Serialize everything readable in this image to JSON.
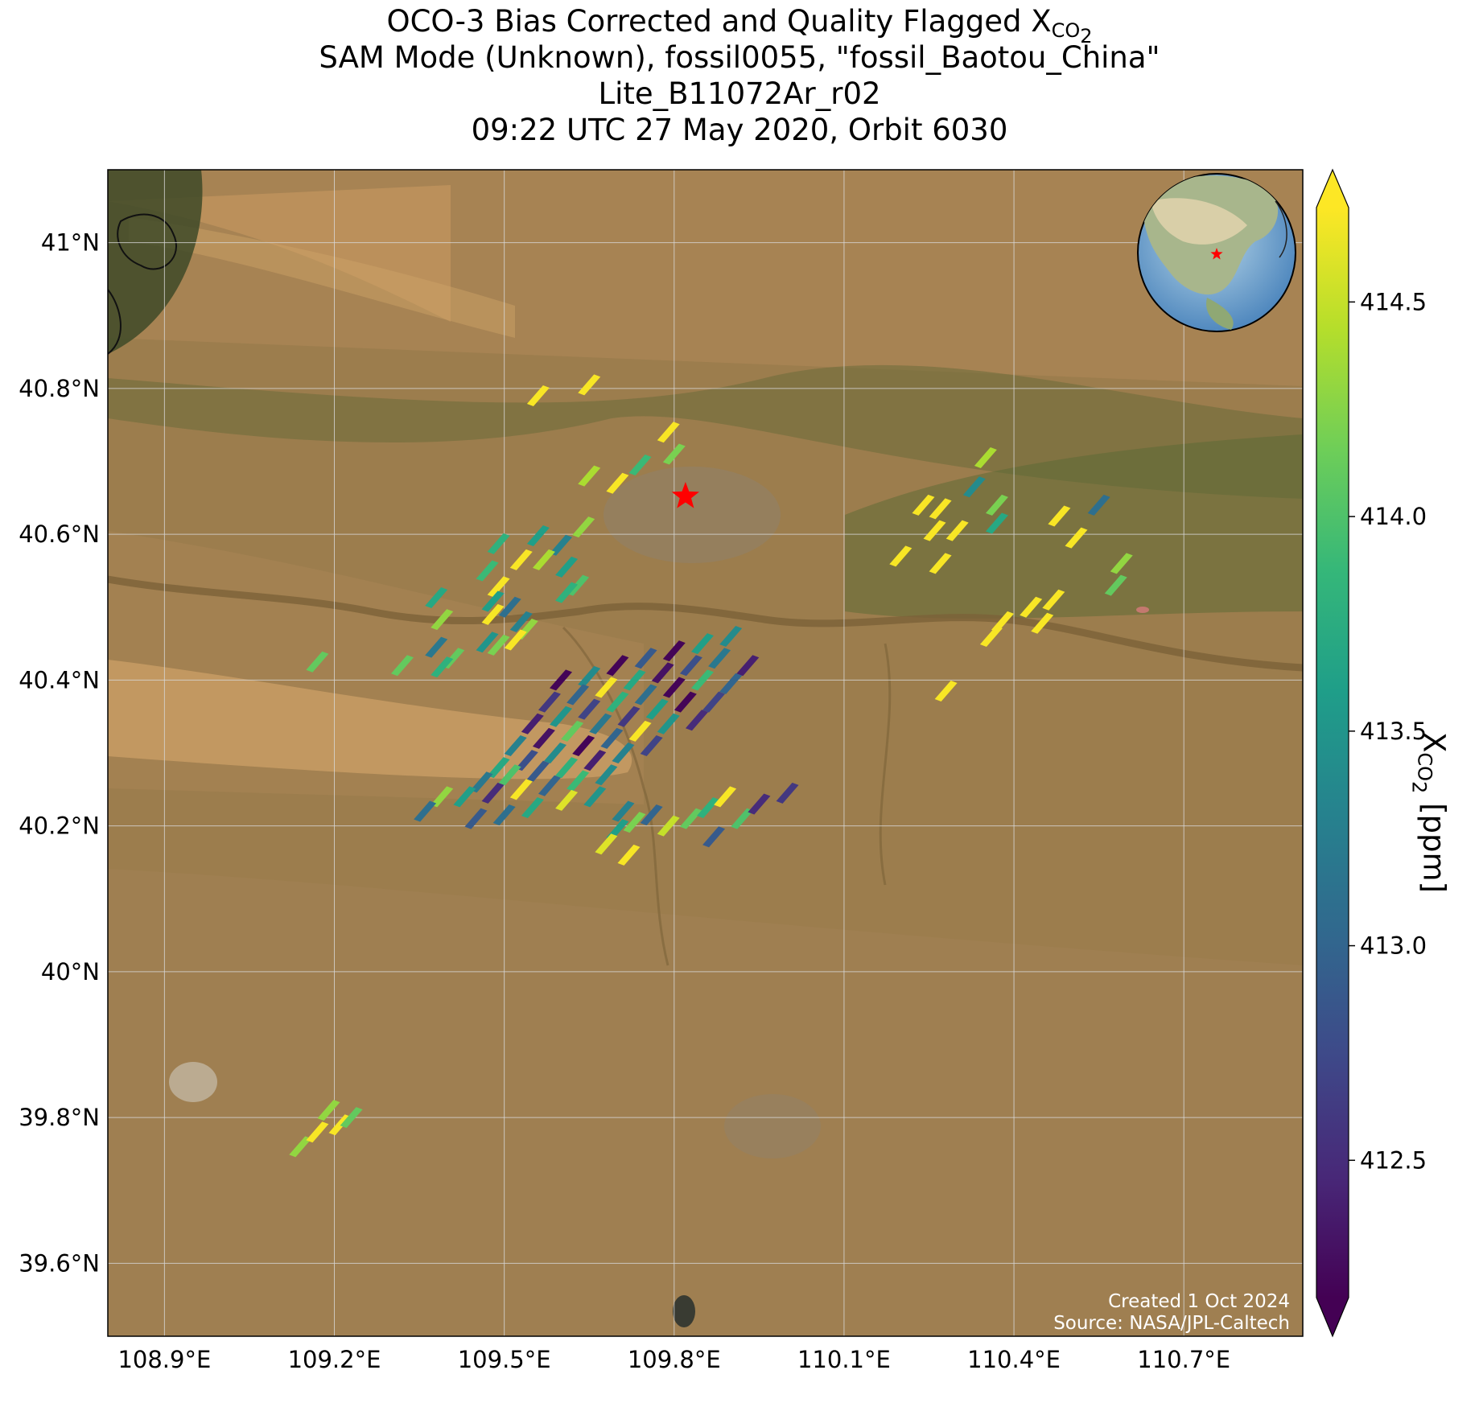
{
  "title": {
    "line1_prefix": "OCO-3 Bias Corrected and Quality Flagged X",
    "line1_sub": "CO",
    "line1_sub2": "2",
    "line2": "SAM Mode (Unknown), fossil0055, \"fossil_Baotou_China\"",
    "line3": "Lite_B11072Ar_r02",
    "line4": "09:22 UTC 27 May 2020, Orbit 6030"
  },
  "map": {
    "lon_ticks": [
      "108.9°E",
      "109.2°E",
      "109.5°E",
      "109.8°E",
      "110.1°E",
      "110.4°E",
      "110.7°E"
    ],
    "lat_ticks": [
      "41°N",
      "40.8°N",
      "40.6°N",
      "40.4°N",
      "40.2°N",
      "40°N",
      "39.8°N",
      "39.6°N"
    ],
    "lon_values": [
      108.9,
      109.2,
      109.5,
      109.8,
      110.1,
      110.4,
      110.7
    ],
    "lat_values": [
      41.0,
      40.8,
      40.6,
      40.4,
      40.2,
      40.0,
      39.8,
      39.6
    ],
    "lon_range": [
      108.8,
      110.91
    ],
    "lat_range": [
      39.5,
      41.1
    ],
    "target_marker": {
      "lon": 109.82,
      "lat": 40.652,
      "color": "#ff0000"
    },
    "inset_globe": {
      "center_lon": 109.8,
      "center_lat": 40.6,
      "marker_color": "#ff0000"
    },
    "credit_line1": "Created 1 Oct 2024",
    "credit_line2": "Source: NASA/JPL-Caltech",
    "colors": {
      "land": "#9c7d4d",
      "desert": "#c89a60",
      "vegetation": "#5a6a33",
      "river": "#7c6238",
      "grid": "#d8d8d8"
    }
  },
  "colorbar": {
    "ticks": [
      "412.5",
      "413.0",
      "413.5",
      "414.0",
      "414.5"
    ],
    "tick_values": [
      412.5,
      413.0,
      413.5,
      414.0,
      414.5
    ],
    "range": [
      412.18,
      414.72
    ],
    "label_prefix": "X",
    "label_sub": "CO",
    "label_sub2": "2",
    "label_suffix": " [ppm]",
    "extend": "both",
    "colormap": "viridis"
  },
  "soundings": [
    {
      "lon": 109.56,
      "lat": 40.79,
      "v": 414.7
    },
    {
      "lon": 109.65,
      "lat": 40.805,
      "v": 414.7
    },
    {
      "lon": 109.79,
      "lat": 40.74,
      "v": 414.7
    },
    {
      "lon": 109.8,
      "lat": 40.71,
      "v": 414.2
    },
    {
      "lon": 109.65,
      "lat": 40.68,
      "v": 414.4
    },
    {
      "lon": 109.74,
      "lat": 40.695,
      "v": 413.9
    },
    {
      "lon": 109.7,
      "lat": 40.67,
      "v": 414.7
    },
    {
      "lon": 109.64,
      "lat": 40.61,
      "v": 414.3
    },
    {
      "lon": 109.49,
      "lat": 40.587,
      "v": 413.8
    },
    {
      "lon": 109.56,
      "lat": 40.598,
      "v": 413.6
    },
    {
      "lon": 109.6,
      "lat": 40.585,
      "v": 413.3
    },
    {
      "lon": 109.53,
      "lat": 40.565,
      "v": 414.7
    },
    {
      "lon": 109.57,
      "lat": 40.565,
      "v": 414.4
    },
    {
      "lon": 109.61,
      "lat": 40.555,
      "v": 413.6
    },
    {
      "lon": 109.47,
      "lat": 40.55,
      "v": 413.9
    },
    {
      "lon": 109.63,
      "lat": 40.53,
      "v": 414.0
    },
    {
      "lon": 109.61,
      "lat": 40.52,
      "v": 413.8
    },
    {
      "lon": 109.49,
      "lat": 40.528,
      "v": 414.7
    },
    {
      "lon": 109.38,
      "lat": 40.513,
      "v": 413.7
    },
    {
      "lon": 109.48,
      "lat": 40.508,
      "v": 413.6
    },
    {
      "lon": 109.51,
      "lat": 40.5,
      "v": 413.1
    },
    {
      "lon": 109.48,
      "lat": 40.49,
      "v": 414.7
    },
    {
      "lon": 109.53,
      "lat": 40.48,
      "v": 413.3
    },
    {
      "lon": 109.39,
      "lat": 40.483,
      "v": 414.3
    },
    {
      "lon": 109.54,
      "lat": 40.47,
      "v": 414.3
    },
    {
      "lon": 109.52,
      "lat": 40.455,
      "v": 414.7
    },
    {
      "lon": 109.47,
      "lat": 40.452,
      "v": 413.5
    },
    {
      "lon": 109.49,
      "lat": 40.448,
      "v": 414.2
    },
    {
      "lon": 109.38,
      "lat": 40.445,
      "v": 413.2
    },
    {
      "lon": 109.41,
      "lat": 40.43,
      "v": 414.1
    },
    {
      "lon": 109.39,
      "lat": 40.418,
      "v": 413.8
    },
    {
      "lon": 109.17,
      "lat": 40.425,
      "v": 414.1
    },
    {
      "lon": 109.32,
      "lat": 40.42,
      "v": 414.1
    },
    {
      "lon": 109.6,
      "lat": 40.4,
      "v": 412.2
    },
    {
      "lon": 109.65,
      "lat": 40.405,
      "v": 413.4
    },
    {
      "lon": 109.7,
      "lat": 40.42,
      "v": 412.2
    },
    {
      "lon": 109.75,
      "lat": 40.43,
      "v": 412.9
    },
    {
      "lon": 109.8,
      "lat": 40.44,
      "v": 412.2
    },
    {
      "lon": 109.85,
      "lat": 40.45,
      "v": 413.6
    },
    {
      "lon": 109.9,
      "lat": 40.46,
      "v": 413.4
    },
    {
      "lon": 109.58,
      "lat": 40.37,
      "v": 412.6
    },
    {
      "lon": 109.63,
      "lat": 40.38,
      "v": 413.0
    },
    {
      "lon": 109.68,
      "lat": 40.39,
      "v": 414.7
    },
    {
      "lon": 109.73,
      "lat": 40.4,
      "v": 413.7
    },
    {
      "lon": 109.78,
      "lat": 40.41,
      "v": 412.3
    },
    {
      "lon": 109.83,
      "lat": 40.42,
      "v": 412.8
    },
    {
      "lon": 109.88,
      "lat": 40.43,
      "v": 413.2
    },
    {
      "lon": 109.93,
      "lat": 40.42,
      "v": 412.4
    },
    {
      "lon": 109.55,
      "lat": 40.34,
      "v": 412.4
    },
    {
      "lon": 109.6,
      "lat": 40.35,
      "v": 413.5
    },
    {
      "lon": 109.65,
      "lat": 40.36,
      "v": 412.7
    },
    {
      "lon": 109.7,
      "lat": 40.37,
      "v": 413.8
    },
    {
      "lon": 109.75,
      "lat": 40.38,
      "v": 413.1
    },
    {
      "lon": 109.8,
      "lat": 40.39,
      "v": 412.2
    },
    {
      "lon": 109.85,
      "lat": 40.4,
      "v": 413.9
    },
    {
      "lon": 109.9,
      "lat": 40.395,
      "v": 413.0
    },
    {
      "lon": 109.52,
      "lat": 40.31,
      "v": 413.3
    },
    {
      "lon": 109.57,
      "lat": 40.32,
      "v": 412.3
    },
    {
      "lon": 109.62,
      "lat": 40.33,
      "v": 414.1
    },
    {
      "lon": 109.67,
      "lat": 40.34,
      "v": 413.2
    },
    {
      "lon": 109.72,
      "lat": 40.35,
      "v": 412.6
    },
    {
      "lon": 109.77,
      "lat": 40.36,
      "v": 413.6
    },
    {
      "lon": 109.82,
      "lat": 40.37,
      "v": 412.2
    },
    {
      "lon": 109.87,
      "lat": 40.37,
      "v": 412.7
    },
    {
      "lon": 109.49,
      "lat": 40.28,
      "v": 413.7
    },
    {
      "lon": 109.54,
      "lat": 40.29,
      "v": 412.8
    },
    {
      "lon": 109.59,
      "lat": 40.3,
      "v": 413.4
    },
    {
      "lon": 109.64,
      "lat": 40.31,
      "v": 412.2
    },
    {
      "lon": 109.69,
      "lat": 40.32,
      "v": 413.0
    },
    {
      "lon": 109.74,
      "lat": 40.33,
      "v": 414.7
    },
    {
      "lon": 109.79,
      "lat": 40.34,
      "v": 413.5
    },
    {
      "lon": 109.84,
      "lat": 40.345,
      "v": 412.5
    },
    {
      "lon": 109.46,
      "lat": 40.26,
      "v": 413.2
    },
    {
      "lon": 109.51,
      "lat": 40.27,
      "v": 414.0
    },
    {
      "lon": 109.56,
      "lat": 40.275,
      "v": 412.9
    },
    {
      "lon": 109.61,
      "lat": 40.28,
      "v": 413.8
    },
    {
      "lon": 109.66,
      "lat": 40.29,
      "v": 412.4
    },
    {
      "lon": 109.71,
      "lat": 40.3,
      "v": 413.3
    },
    {
      "lon": 109.76,
      "lat": 40.31,
      "v": 412.7
    },
    {
      "lon": 109.43,
      "lat": 40.24,
      "v": 413.6
    },
    {
      "lon": 109.48,
      "lat": 40.245,
      "v": 412.5
    },
    {
      "lon": 109.53,
      "lat": 40.25,
      "v": 414.7
    },
    {
      "lon": 109.58,
      "lat": 40.255,
      "v": 413.0
    },
    {
      "lon": 109.63,
      "lat": 40.262,
      "v": 413.9
    },
    {
      "lon": 109.68,
      "lat": 40.27,
      "v": 413.4
    },
    {
      "lon": 109.5,
      "lat": 40.215,
      "v": 413.1
    },
    {
      "lon": 109.55,
      "lat": 40.225,
      "v": 413.7
    },
    {
      "lon": 109.61,
      "lat": 40.235,
      "v": 414.6
    },
    {
      "lon": 109.66,
      "lat": 40.24,
      "v": 413.5
    },
    {
      "lon": 109.45,
      "lat": 40.21,
      "v": 412.9
    },
    {
      "lon": 109.39,
      "lat": 40.24,
      "v": 414.3
    },
    {
      "lon": 109.36,
      "lat": 40.22,
      "v": 413.1
    },
    {
      "lon": 109.71,
      "lat": 40.22,
      "v": 413.3
    },
    {
      "lon": 109.76,
      "lat": 40.215,
      "v": 413.0
    },
    {
      "lon": 109.73,
      "lat": 40.205,
      "v": 414.2
    },
    {
      "lon": 109.7,
      "lat": 40.195,
      "v": 413.6
    },
    {
      "lon": 109.79,
      "lat": 40.2,
      "v": 414.5
    },
    {
      "lon": 109.83,
      "lat": 40.21,
      "v": 414.1
    },
    {
      "lon": 109.86,
      "lat": 40.225,
      "v": 413.8
    },
    {
      "lon": 109.89,
      "lat": 40.24,
      "v": 414.7
    },
    {
      "lon": 109.92,
      "lat": 40.21,
      "v": 414.0
    },
    {
      "lon": 109.87,
      "lat": 40.185,
      "v": 412.9
    },
    {
      "lon": 109.68,
      "lat": 40.175,
      "v": 414.6
    },
    {
      "lon": 109.72,
      "lat": 40.16,
      "v": 414.7
    },
    {
      "lon": 109.95,
      "lat": 40.23,
      "v": 412.5
    },
    {
      "lon": 110.0,
      "lat": 40.245,
      "v": 412.6
    },
    {
      "lon": 110.24,
      "lat": 40.64,
      "v": 414.7
    },
    {
      "lon": 110.27,
      "lat": 40.635,
      "v": 414.7
    },
    {
      "lon": 110.26,
      "lat": 40.605,
      "v": 414.7
    },
    {
      "lon": 110.3,
      "lat": 40.605,
      "v": 414.7
    },
    {
      "lon": 110.2,
      "lat": 40.57,
      "v": 414.7
    },
    {
      "lon": 110.27,
      "lat": 40.56,
      "v": 414.7
    },
    {
      "lon": 110.35,
      "lat": 40.705,
      "v": 414.4
    },
    {
      "lon": 110.33,
      "lat": 40.665,
      "v": 413.4
    },
    {
      "lon": 110.37,
      "lat": 40.64,
      "v": 414.2
    },
    {
      "lon": 110.37,
      "lat": 40.615,
      "v": 413.7
    },
    {
      "lon": 110.48,
      "lat": 40.625,
      "v": 414.7
    },
    {
      "lon": 110.51,
      "lat": 40.595,
      "v": 414.7
    },
    {
      "lon": 110.55,
      "lat": 40.64,
      "v": 413.1
    },
    {
      "lon": 110.59,
      "lat": 40.56,
      "v": 414.3
    },
    {
      "lon": 110.58,
      "lat": 40.53,
      "v": 414.1
    },
    {
      "lon": 110.47,
      "lat": 40.51,
      "v": 414.7
    },
    {
      "lon": 110.43,
      "lat": 40.5,
      "v": 414.7
    },
    {
      "lon": 110.45,
      "lat": 40.478,
      "v": 414.7
    },
    {
      "lon": 110.38,
      "lat": 40.48,
      "v": 414.7
    },
    {
      "lon": 110.36,
      "lat": 40.46,
      "v": 414.7
    },
    {
      "lon": 110.28,
      "lat": 40.385,
      "v": 414.7
    },
    {
      "lon": 109.14,
      "lat": 39.76,
      "v": 414.3
    },
    {
      "lon": 109.17,
      "lat": 39.78,
      "v": 414.7
    },
    {
      "lon": 109.19,
      "lat": 39.81,
      "v": 414.3
    },
    {
      "lon": 109.21,
      "lat": 39.79,
      "v": 414.7
    },
    {
      "lon": 109.23,
      "lat": 39.8,
      "v": 414.1
    }
  ]
}
